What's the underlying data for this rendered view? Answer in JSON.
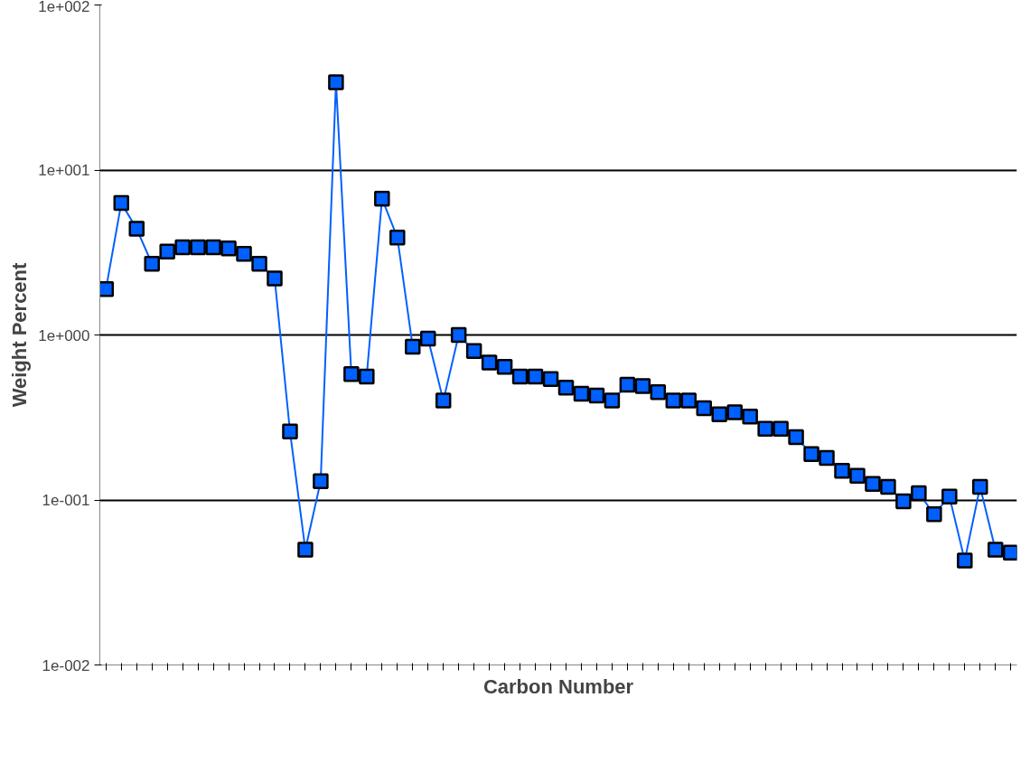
{
  "chart_data": {
    "type": "line",
    "xlabel": "Carbon Number",
    "ylabel": "Weight Percent",
    "categories": [
      null,
      null,
      null,
      null,
      null,
      null,
      null,
      null,
      null,
      null,
      null,
      null,
      null,
      null,
      null,
      null,
      null,
      null,
      null,
      null,
      null,
      null,
      null,
      null,
      null,
      null,
      null,
      null,
      null,
      null,
      null,
      null,
      null,
      null,
      null,
      null,
      null,
      null,
      null,
      null,
      null,
      null,
      null,
      null,
      null,
      null,
      null,
      null,
      null,
      null,
      null,
      null,
      null,
      null,
      null,
      null,
      null,
      null,
      null,
      null
    ],
    "series": [
      {
        "color": "#0060ff",
        "values": [
          1.9,
          6.3,
          4.4,
          2.7,
          3.2,
          3.4,
          3.4,
          3.4,
          3.35,
          3.1,
          2.7,
          2.2,
          0.26,
          0.05,
          0.13,
          34,
          0.58,
          0.56,
          6.7,
          3.9,
          0.85,
          0.95,
          0.4,
          1.0,
          0.8,
          0.68,
          0.64,
          0.56,
          0.56,
          0.54,
          0.48,
          0.44,
          0.43,
          0.4,
          0.5,
          0.49,
          0.45,
          0.4,
          0.4,
          0.36,
          0.33,
          0.34,
          0.32,
          0.27,
          0.27,
          0.24,
          0.19,
          0.18,
          0.15,
          0.14,
          0.125,
          0.12,
          0.098,
          0.11,
          0.082,
          0.105,
          0.043,
          0.12,
          0.05,
          0.048
        ]
      }
    ],
    "log": "y",
    "ylim": [
      0.01,
      100
    ],
    "yticks": [
      {
        "value": 0.01,
        "label": "1e-002"
      },
      {
        "value": 0.1,
        "label": "1e-001"
      },
      {
        "value": 1,
        "label": "1e+000"
      },
      {
        "value": 10,
        "label": "1e+001"
      },
      {
        "value": 100,
        "label": "1e+002"
      }
    ],
    "grid": "y",
    "marker": "square",
    "line_style": "solid"
  }
}
